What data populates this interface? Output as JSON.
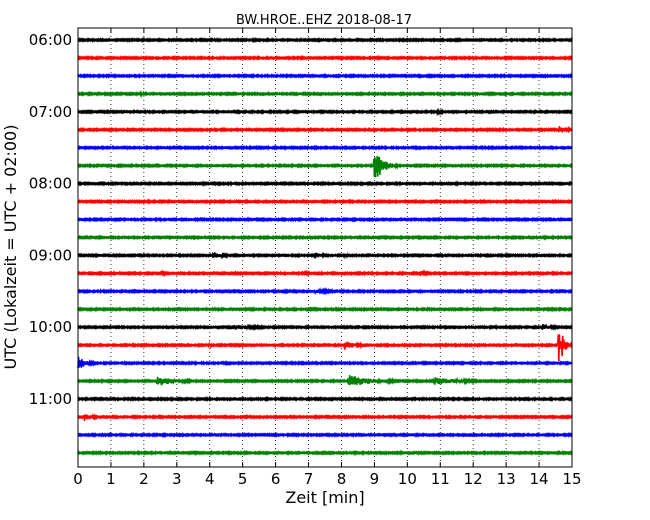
{
  "chart_data": {
    "type": "line",
    "subtype": "helicorder",
    "title": "BW.HROE..EHZ 2018-08-17",
    "xlabel": "Zeit  [min]",
    "ylabel": "UTC (Lokalzeit = UTC + 02:00)",
    "xlim": [
      0,
      15
    ],
    "x_ticks": [
      "0",
      "1",
      "2",
      "3",
      "4",
      "5",
      "6",
      "7",
      "8",
      "9",
      "10",
      "11",
      "12",
      "13",
      "14",
      "15"
    ],
    "y_tick_labels": [
      "06:00",
      "07:00",
      "08:00",
      "09:00",
      "10:00",
      "11:00"
    ],
    "grid": "vertical dotted",
    "trace_minutes": 15,
    "color_cycle": [
      "#000000",
      "#ff0000",
      "#0000ff",
      "#008000"
    ],
    "traces_start_utc": [
      "06:00",
      "06:15",
      "06:30",
      "06:45",
      "07:00",
      "07:15",
      "07:30",
      "07:45",
      "08:00",
      "08:15",
      "08:30",
      "08:45",
      "09:00",
      "09:15",
      "09:30",
      "09:45",
      "10:00",
      "10:15",
      "10:30",
      "10:45",
      "11:00",
      "11:15",
      "11:30",
      "11:45"
    ],
    "events": [
      {
        "trace_start_utc": "06:45",
        "minute": 1.8,
        "amplitude": 0.25,
        "duration_min": 0.8
      },
      {
        "trace_start_utc": "07:00",
        "minute": 10.9,
        "amplitude": 0.25,
        "duration_min": 0.5
      },
      {
        "trace_start_utc": "07:15",
        "minute": 14.6,
        "amplitude": 0.45,
        "duration_min": 0.6
      },
      {
        "trace_start_utc": "07:45",
        "minute": 9.0,
        "amplitude": 1.9,
        "duration_min": 0.7
      },
      {
        "trace_start_utc": "09:00",
        "minute": 4.1,
        "amplitude": 0.4,
        "duration_min": 0.8
      },
      {
        "trace_start_utc": "09:00",
        "minute": 7.2,
        "amplitude": 0.35,
        "duration_min": 0.6
      },
      {
        "trace_start_utc": "09:00",
        "minute": 8.1,
        "amplitude": 0.2,
        "duration_min": 0.5
      },
      {
        "trace_start_utc": "09:15",
        "minute": 2.5,
        "amplitude": 0.3,
        "duration_min": 0.4
      },
      {
        "trace_start_utc": "09:15",
        "minute": 6.9,
        "amplitude": 0.25,
        "duration_min": 0.4
      },
      {
        "trace_start_utc": "09:15",
        "minute": 10.4,
        "amplitude": 0.3,
        "duration_min": 0.5
      },
      {
        "trace_start_utc": "09:30",
        "minute": 7.2,
        "amplitude": 0.2,
        "duration_min": 2.0
      },
      {
        "trace_start_utc": "10:00",
        "minute": 4.6,
        "amplitude": 0.35,
        "duration_min": 2.0
      },
      {
        "trace_start_utc": "10:00",
        "minute": 14.1,
        "amplitude": 0.4,
        "duration_min": 0.7
      },
      {
        "trace_start_utc": "10:15",
        "minute": 3.9,
        "amplitude": 0.2,
        "duration_min": 1.0
      },
      {
        "trace_start_utc": "10:15",
        "minute": 8.1,
        "amplitude": 0.55,
        "duration_min": 0.8
      },
      {
        "trace_start_utc": "10:15",
        "minute": 14.7,
        "amplitude": 1.4,
        "duration_min": 0.3
      },
      {
        "trace_start_utc": "10:15",
        "minute": 14.6,
        "amplitude": 4.2,
        "duration_min": 0.06
      },
      {
        "trace_start_utc": "10:30",
        "minute": 0.0,
        "amplitude": 0.8,
        "duration_min": 0.6
      },
      {
        "trace_start_utc": "10:45",
        "minute": 2.4,
        "amplitude": 0.6,
        "duration_min": 1.5
      },
      {
        "trace_start_utc": "10:45",
        "minute": 8.2,
        "amplitude": 0.7,
        "duration_min": 2.0
      },
      {
        "trace_start_utc": "10:45",
        "minute": 10.8,
        "amplitude": 0.45,
        "duration_min": 2.2
      },
      {
        "trace_start_utc": "11:15",
        "minute": 0.2,
        "amplitude": 0.5,
        "duration_min": 0.6
      }
    ]
  }
}
